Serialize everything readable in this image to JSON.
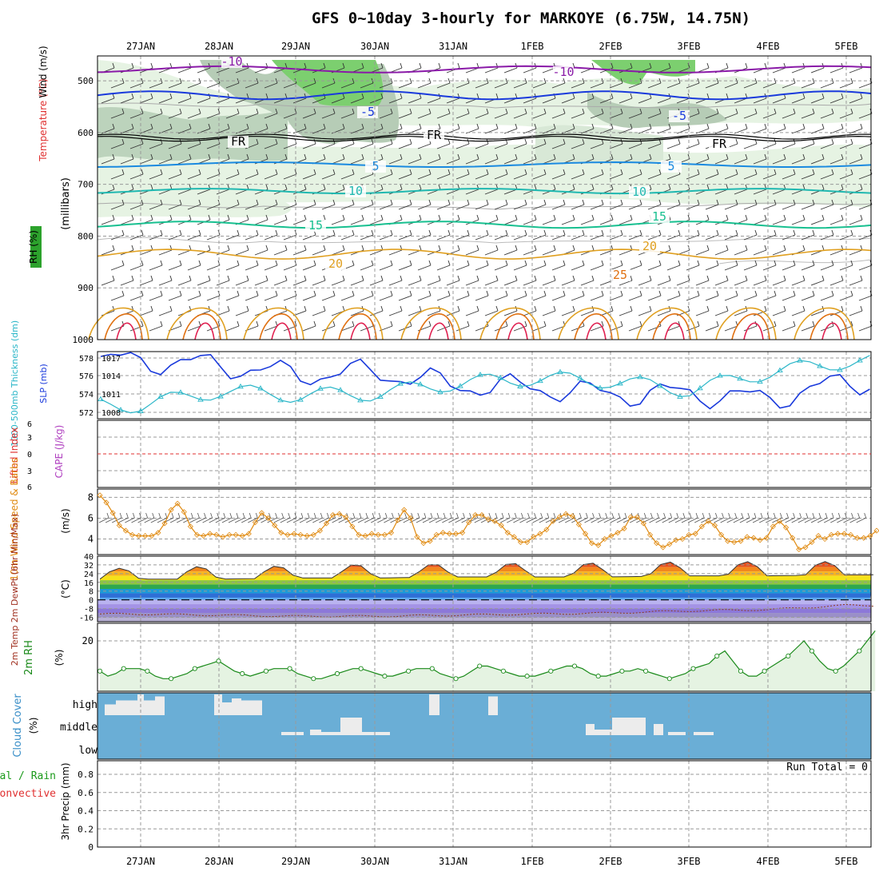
{
  "title": "GFS 0~10day 3-hourly for MARKOYE (6.75W, 14.75N)",
  "dates": [
    "27JAN",
    "28JAN",
    "29JAN",
    "30JAN",
    "31JAN",
    "1FEB",
    "2FEB",
    "3FEB",
    "4FEB",
    "5FEB"
  ],
  "colors": {
    "rh": "#1e9b1e",
    "temp_warm": "#e07a10",
    "temp_cold": "#1a3adc",
    "wind": "#e08a10",
    "slp": "#1a3adc",
    "thickness": "#2ab6c8",
    "cape": "#b040c0",
    "lifted": "#e03030",
    "cloud": "#6aaed6"
  },
  "panels": {
    "upper_air": {
      "ylabel_parts": [
        "RH (%)",
        "Temperature (°C)",
        "Wind (m/s)"
      ],
      "unit": "(millibars)",
      "yticks": [
        "500",
        "600",
        "700",
        "800",
        "900",
        "1000"
      ],
      "contour_labels": [
        "-10",
        "-10",
        "-5",
        "-5",
        "FR",
        "FR",
        "FR",
        "5",
        "5",
        "10",
        "10",
        "15",
        "15",
        "20",
        "20",
        "25"
      ]
    },
    "slp_thickness": {
      "ylabel_left": "1000-500mb Thickness (dm)",
      "ylabel_right": "SLP (mb)",
      "yticks_left": [
        "578",
        "576",
        "574",
        "572"
      ],
      "yticks_right": [
        "1017",
        "1014",
        "1011",
        "1008"
      ]
    },
    "cape": {
      "ylabel_left": "Lifted Index",
      "ylabel_right": "CAPE (J/kg)",
      "yticks": [
        "6",
        "3",
        "0",
        "3",
        "6"
      ]
    },
    "wind10m": {
      "ylabel": "10m Wind Speed & Barbs",
      "unit": "(m/s)",
      "yticks": [
        "8",
        "6",
        "4"
      ]
    },
    "temp2m": {
      "ylabel": "2m Temp 2m DewPt (6hr Min/Max)",
      "unit": "(°C)",
      "yticks": [
        "40",
        "32",
        "24",
        "16",
        "8",
        "0",
        "-8",
        "-16"
      ]
    },
    "rh2m": {
      "ylabel": "2m RH",
      "unit": "(%)",
      "yticks": [
        "20"
      ]
    },
    "cloud": {
      "ylabel": "Cloud Cover",
      "unit": "(%)",
      "levels": [
        "high",
        "middle",
        "low"
      ]
    },
    "precip": {
      "ylabel": "3hr Precip (mm)",
      "left_labels": [
        "Total / Rain",
        "Convective"
      ],
      "yticks": [
        "0.8",
        "0.6",
        "0.4",
        "0.2",
        "0"
      ],
      "run_total": "Run Total = 0"
    }
  },
  "chart_data": [
    {
      "type": "line",
      "title": "1000-500mb Thickness (dm) / SLP (mb)",
      "x": [
        "27JAN",
        "28JAN",
        "29JAN",
        "30JAN",
        "31JAN",
        "1FEB",
        "2FEB",
        "3FEB",
        "4FEB",
        "5FEB"
      ],
      "series": [
        {
          "name": "SLP (mb)",
          "values": [
            1016.5,
            1015.8,
            1014.2,
            1014.7,
            1012.5,
            1012.1,
            1011.0,
            1011.2,
            1010.2,
            1013.0
          ]
        },
        {
          "name": "1000-500mb Thickness (dm)",
          "values": [
            572.6,
            574.3,
            573.8,
            574.0,
            575.2,
            575.8,
            575.5,
            574.4,
            576.5,
            577.8
          ]
        }
      ],
      "ylim_left": [
        571,
        579
      ],
      "ylim_right": [
        1007,
        1018
      ]
    },
    {
      "type": "line",
      "title": "10m Wind Speed (m/s)",
      "values": [
        8.2,
        7.5,
        6.5,
        5.3,
        4.8,
        4.4,
        4.3,
        4.3,
        4.3,
        4.6,
        5.5,
        6.8,
        7.4,
        6.6,
        5.2,
        4.4,
        4.3,
        4.5,
        4.4,
        4.2,
        4.4,
        4.4,
        4.3,
        4.5,
        5.6,
        6.5,
        6.0,
        5.3,
        4.6,
        4.4,
        4.5,
        4.4,
        4.3,
        4.4,
        4.8,
        5.5,
        6.3,
        6.4,
        6.1,
        5.2,
        4.4,
        4.3,
        4.5,
        4.4,
        4.4,
        4.6,
        5.8,
        6.8,
        6.0,
        4.2,
        3.6,
        3.8,
        4.4,
        4.6,
        4.5,
        4.5,
        4.6,
        5.6,
        6.3,
        6.3,
        5.9,
        5.7,
        5.3,
        4.6,
        4.2,
        3.7,
        3.7,
        4.2,
        4.5,
        4.9,
        5.7,
        6.1,
        6.4,
        6.2,
        5.4,
        4.5,
        3.6,
        3.4,
        4.0,
        4.3,
        4.6,
        5.0,
        6.1,
        6.1,
        5.5,
        4.4,
        3.6,
        3.2,
        3.5,
        3.9,
        4.0,
        4.4,
        4.5,
        5.2,
        5.7,
        5.3,
        4.4,
        3.8,
        3.7,
        3.8,
        4.2,
        4.1,
        3.9,
        4.1,
        5.2,
        5.7,
        5.1,
        4.1,
        3.0,
        3.2,
        3.7,
        4.3,
        4.0,
        4.4,
        4.5,
        4.5,
        4.4,
        4.1,
        4.1,
        4.3,
        4.8
      ],
      "ylim": [
        2.5,
        8.8
      ]
    },
    {
      "type": "area",
      "title": "2m Temp (°C)",
      "x": [
        "27JAN",
        "28JAN",
        "29JAN",
        "30JAN",
        "31JAN",
        "1FEB",
        "2FEB",
        "3FEB",
        "4FEB",
        "5FEB"
      ],
      "series": [
        {
          "name": "2m Temp max",
          "values": [
            29,
            31,
            31,
            33,
            33,
            34,
            34,
            35,
            35,
            35
          ]
        },
        {
          "name": "2m Temp min",
          "values": [
            19,
            19,
            20,
            20,
            21,
            21,
            21,
            22,
            22,
            23
          ]
        },
        {
          "name": "2m DewPt",
          "values": [
            -13,
            -14,
            -15,
            -15,
            -14,
            -13,
            -12,
            -10,
            -9,
            -5
          ]
        }
      ],
      "ylim": [
        -20,
        40
      ]
    },
    {
      "type": "line",
      "title": "2m RH (%)",
      "values": [
        8,
        6,
        7,
        9,
        9,
        9,
        8,
        6,
        5,
        5,
        6,
        7,
        9,
        10,
        11,
        12,
        10,
        8,
        7,
        6,
        7,
        8,
        9,
        9,
        9,
        7,
        6,
        5,
        5,
        6,
        7,
        8,
        9,
        9,
        8,
        7,
        6,
        6,
        7,
        8,
        9,
        9,
        9,
        7,
        6,
        5,
        6,
        8,
        10,
        10,
        9,
        8,
        7,
        6,
        6,
        6,
        7,
        8,
        9,
        10,
        10,
        9,
        7,
        6,
        6,
        7,
        8,
        8,
        9,
        8,
        7,
        6,
        5,
        6,
        7,
        9,
        10,
        11,
        14,
        16,
        12,
        8,
        6,
        6,
        8,
        10,
        12,
        14,
        17,
        20,
        16,
        12,
        9,
        8,
        10,
        13,
        16,
        20,
        24
      ],
      "ylim": [
        0,
        27
      ]
    },
    {
      "type": "bar",
      "title": "Cloud Cover (%)",
      "categories": [
        "high",
        "middle",
        "low"
      ],
      "values": [
        20,
        15,
        0
      ]
    },
    {
      "type": "bar",
      "title": "3hr Precip (mm)",
      "values": [
        0
      ],
      "ylim": [
        0,
        0.95
      ]
    }
  ]
}
